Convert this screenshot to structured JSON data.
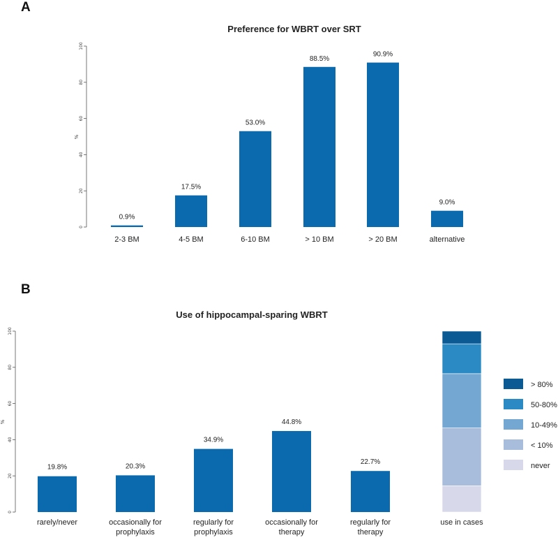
{
  "colors": {
    "bar": "#0a6aad",
    "stack": [
      "#d8d8eb",
      "#a8bcdc",
      "#74a8d2",
      "#2b8ac3",
      "#0c5a94"
    ]
  },
  "chart_data": [
    {
      "panel": "A",
      "type": "bar",
      "title": "Preference for WBRT over SRT",
      "xlabel": "",
      "ylabel": "%",
      "ylim": [
        0,
        100
      ],
      "yticks": [
        0,
        20,
        40,
        60,
        80,
        100
      ],
      "categories": [
        "2-3 BM",
        "4-5 BM",
        "6-10 BM",
        "> 10 BM",
        "> 20 BM",
        "alternative"
      ],
      "values": [
        0.9,
        17.5,
        53.0,
        88.5,
        90.9,
        9.0
      ],
      "value_labels": [
        "0.9%",
        "17.5%",
        "53.0%",
        "88.5%",
        "90.9%",
        "9.0%"
      ]
    },
    {
      "panel": "B",
      "type": "bar",
      "title": "Use of hippocampal-sparing WBRT",
      "xlabel": "",
      "ylabel": "%",
      "ylim": [
        0,
        100
      ],
      "yticks": [
        0,
        20,
        40,
        60,
        80,
        100
      ],
      "categories": [
        [
          "rarely/never"
        ],
        [
          "occasionally for",
          "prophylaxis"
        ],
        [
          "regularly for",
          "prophylaxis"
        ],
        [
          "occasionally for",
          "therapy"
        ],
        [
          "regularly for",
          "therapy"
        ]
      ],
      "values": [
        19.8,
        20.3,
        34.9,
        44.8,
        22.7
      ],
      "value_labels": [
        "19.8%",
        "20.3%",
        "34.9%",
        "44.8%",
        "22.7%"
      ],
      "stacked": {
        "category": "use in cases",
        "series": [
          {
            "name": "never",
            "value": 14.5
          },
          {
            "name": "< 10%",
            "value": 32.0
          },
          {
            "name": "10-49%",
            "value": 30.0
          },
          {
            "name": "50-80%",
            "value": 16.5
          },
          {
            "name": "> 80%",
            "value": 7.0
          }
        ],
        "legend_order": [
          "> 80%",
          "50-80%",
          "10-49%",
          "< 10%",
          "never"
        ]
      }
    }
  ]
}
